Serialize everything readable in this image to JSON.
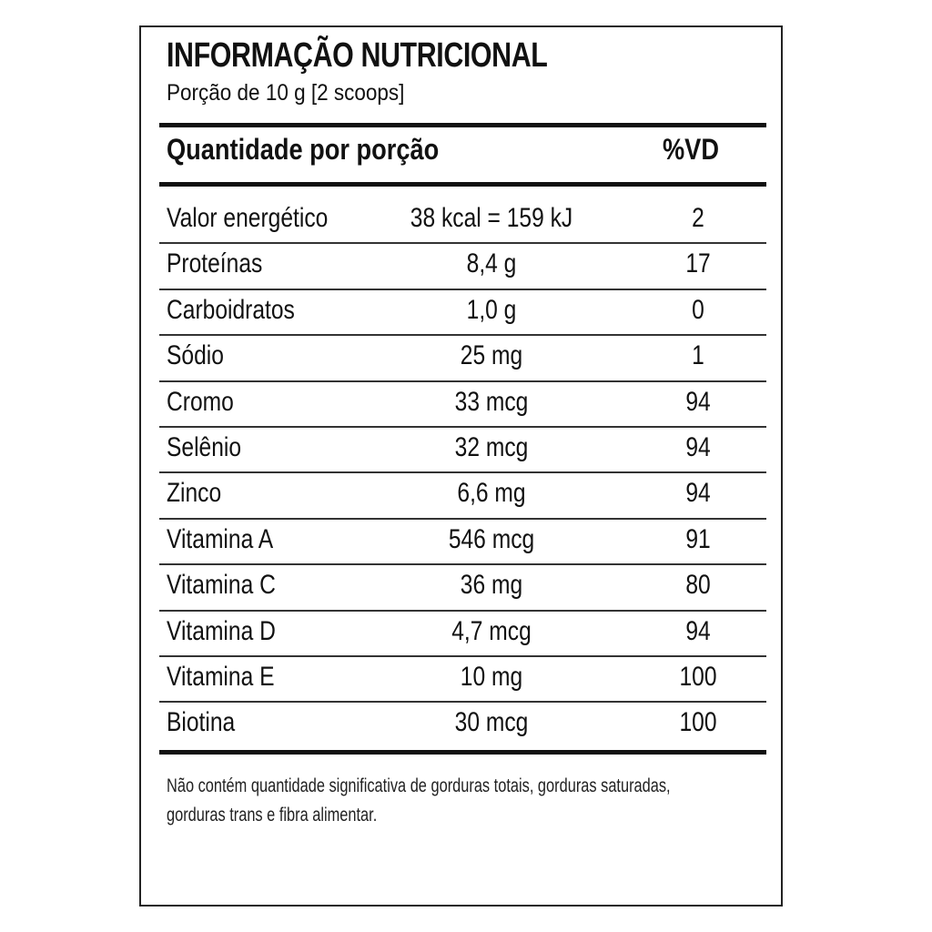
{
  "header": {
    "title": "INFORMAÇÃO NUTRICIONAL",
    "subtitle": "Porção de 10 g  [2 scoops]"
  },
  "table": {
    "columns": [
      "Quantidade por porção",
      "%VD"
    ],
    "rows": [
      [
        "Valor energético",
        "38 kcal = 159 kJ",
        2
      ],
      [
        "Proteínas",
        "8,4 g",
        17
      ],
      [
        "Carboidratos",
        "1,0 g",
        0
      ],
      [
        "Sódio",
        "25 mg",
        1
      ],
      [
        "Cromo",
        "33 mcg",
        94
      ],
      [
        "Selênio",
        "32 mcg",
        94
      ],
      [
        "Zinco",
        "6,6 mg",
        94
      ],
      [
        "Vitamina A",
        "546 mcg",
        91
      ],
      [
        "Vitamina C",
        "36 mg",
        80
      ],
      [
        "Vitamina D",
        "4,7 mcg",
        94
      ],
      [
        "Vitamina E",
        "10 mg",
        100
      ],
      [
        "Biotina",
        "30 mcg",
        100
      ]
    ]
  },
  "footer": {
    "note": [
      "Não contém quantidade significativa de gorduras totais, gorduras saturadas,",
      "gorduras trans e fibra alimentar."
    ]
  }
}
